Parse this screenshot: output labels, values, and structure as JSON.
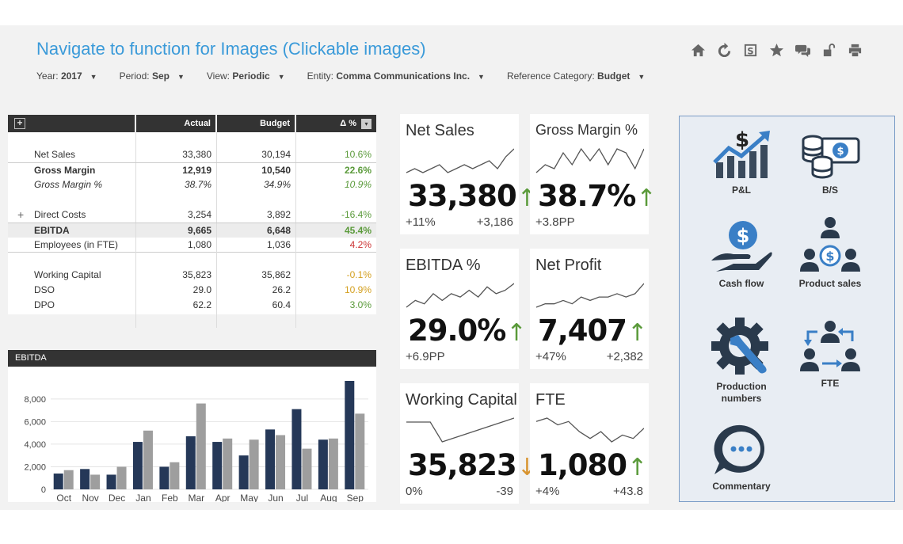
{
  "header": {
    "title": "Navigate to function for Images (Clickable images)",
    "filters": [
      {
        "label": "Year:",
        "value": "2017"
      },
      {
        "label": "Period:",
        "value": "Sep"
      },
      {
        "label": "View:",
        "value": "Periodic"
      },
      {
        "label": "Entity:",
        "value": "Comma Communications Inc."
      },
      {
        "label": "Reference Category:",
        "value": "Budget"
      }
    ],
    "toolbar_icons": [
      "home-icon",
      "refresh-icon",
      "dollar-doc-icon",
      "star-icon",
      "comment-icon",
      "unlock-icon",
      "print-icon"
    ]
  },
  "table": {
    "columns": [
      "Actual",
      "Budget",
      "Δ %"
    ],
    "rows": [
      {
        "label": "Net Sales",
        "actual": "33,380",
        "budget": "30,194",
        "delta": "10.6%",
        "tone": "pos"
      },
      {
        "label": "Gross Margin",
        "actual": "12,919",
        "budget": "10,540",
        "delta": "22.6%",
        "tone": "pos"
      },
      {
        "label": "Gross Margin %",
        "actual": "38.7%",
        "budget": "34.9%",
        "delta": "10.9%",
        "tone": "pos"
      },
      {
        "label": "Direct Costs",
        "actual": "3,254",
        "budget": "3,892",
        "delta": "-16.4%",
        "tone": "pos"
      },
      {
        "label": "EBITDA",
        "actual": "9,665",
        "budget": "6,648",
        "delta": "45.4%",
        "tone": "pos"
      },
      {
        "label": "Employees (in FTE)",
        "actual": "1,080",
        "budget": "1,036",
        "delta": "4.2%",
        "tone": "neg"
      },
      {
        "label": "Working Capital",
        "actual": "35,823",
        "budget": "35,862",
        "delta": "-0.1%",
        "tone": "warn"
      },
      {
        "label": "DSO",
        "actual": "29.0",
        "budget": "26.2",
        "delta": "10.9%",
        "tone": "warn"
      },
      {
        "label": "DPO",
        "actual": "62.2",
        "budget": "60.4",
        "delta": "3.0%",
        "tone": "pos"
      }
    ]
  },
  "chart_data": {
    "type": "bar",
    "title": "EBITDA",
    "categories": [
      "Oct",
      "Nov",
      "Dec",
      "Jan",
      "Feb",
      "Mar",
      "Apr",
      "May",
      "Jun",
      "Jul",
      "Aug",
      "Sep"
    ],
    "series": [
      {
        "color": "#253858",
        "values": [
          1400,
          1800,
          1300,
          4200,
          2000,
          4700,
          4200,
          3000,
          5300,
          7100,
          4400,
          9600
        ]
      },
      {
        "color": "#9e9e9e",
        "values": [
          1700,
          1300,
          2000,
          5200,
          2400,
          7600,
          4500,
          4400,
          4800,
          3600,
          4500,
          6700
        ]
      }
    ],
    "ylim": [
      0,
      9600
    ],
    "yticks": [
      0,
      2000,
      4000,
      6000,
      8000
    ],
    "ytick_labels": [
      "0",
      "2,000",
      "4,000",
      "6,000",
      "8,000"
    ],
    "grid": true
  },
  "cards": [
    {
      "title": "Net Sales",
      "value": "33,380",
      "arrow": "↑",
      "dir": "up",
      "foot_left": "+11%",
      "foot_right": "+3,186",
      "spark": [
        6,
        5,
        6,
        5,
        4,
        6,
        5,
        4,
        5,
        4,
        3,
        5,
        2,
        0
      ]
    },
    {
      "title": "Gross Margin %",
      "value": "38.7%",
      "arrow": "↑",
      "dir": "up",
      "foot_left": "+3.8PP",
      "foot_right": "",
      "spark": [
        7,
        5,
        6,
        2,
        5,
        1,
        4,
        1,
        5,
        1,
        2,
        6,
        1
      ]
    },
    {
      "title": "EBITDA %",
      "value": "29.0%",
      "arrow": "↑",
      "dir": "up",
      "foot_left": "+6.9PP",
      "foot_right": "",
      "spark": [
        7,
        5,
        6,
        3,
        5,
        3,
        4,
        2,
        4,
        1,
        3,
        2,
        0
      ]
    },
    {
      "title": "Net Profit",
      "value": "7,407",
      "arrow": "↑",
      "dir": "up",
      "foot_left": "+47%",
      "foot_right": "+2,382",
      "spark": [
        7,
        6,
        6,
        5,
        6,
        4,
        5,
        4,
        4,
        3,
        4,
        3,
        0
      ]
    },
    {
      "title": "Working Capital",
      "value": "35,823",
      "arrow": "↓",
      "dir": "down",
      "foot_left": "0%",
      "foot_right": "-39",
      "spark": [
        1,
        1,
        1,
        6,
        5,
        4,
        3,
        2,
        1,
        0
      ]
    },
    {
      "title": "FTE",
      "value": "1,080",
      "arrow": "↑",
      "dir": "up",
      "foot_left": "+4%",
      "foot_right": "+43.8",
      "spark": [
        1,
        0,
        2,
        1,
        4,
        6,
        4,
        7,
        5,
        6,
        3
      ]
    }
  ],
  "nav": [
    {
      "label": "P&L",
      "icon": "pl-chart-icon"
    },
    {
      "label": "B/S",
      "icon": "coins-cash-icon"
    },
    {
      "label": "Cash flow",
      "icon": "cash-hand-icon"
    },
    {
      "label": "Product sales",
      "icon": "org-dollar-icon"
    },
    {
      "label": "Production numbers",
      "icon": "gear-wrench-icon"
    },
    {
      "label": "FTE",
      "icon": "people-exchange-icon"
    },
    {
      "label": "Commentary",
      "icon": "chat-bubble-icon"
    }
  ],
  "colors": {
    "title": "#3a9ad9",
    "positive": "#5a9a3a",
    "negative": "#cc3333",
    "warning": "#d4a020",
    "actual_bar": "#253858",
    "budget_bar": "#9e9e9e"
  }
}
